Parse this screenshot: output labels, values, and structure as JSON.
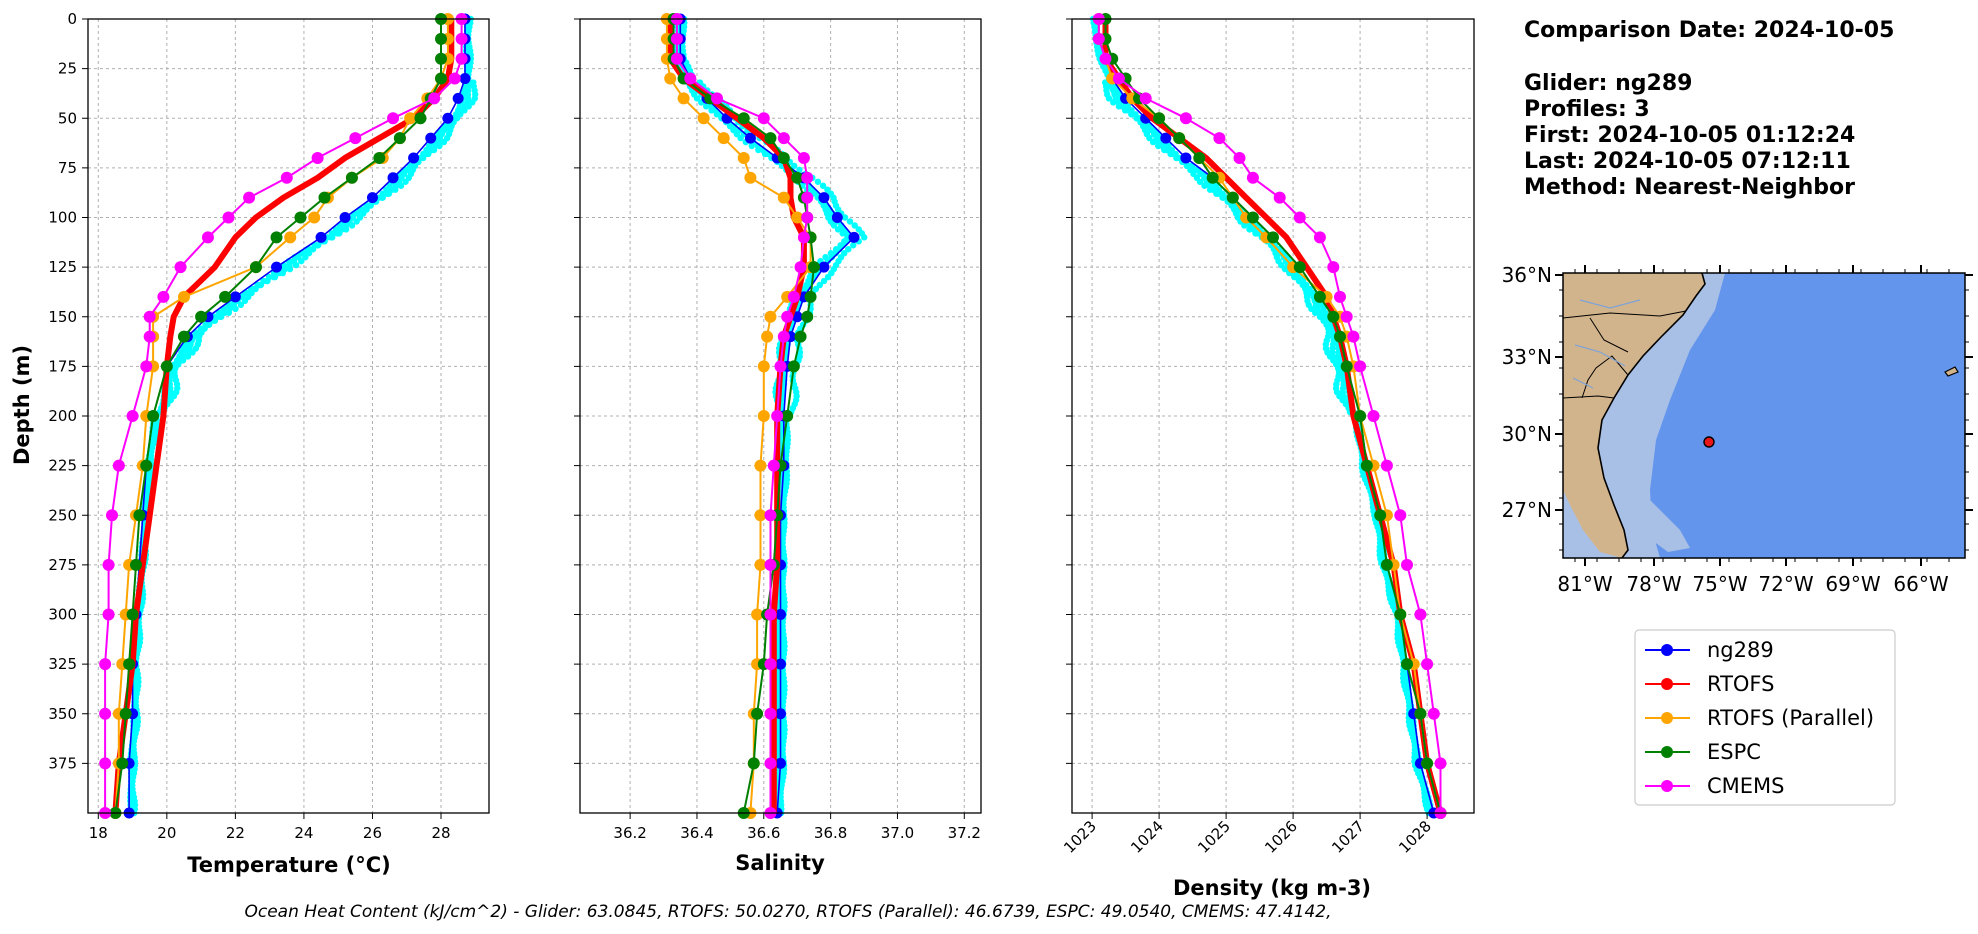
{
  "info": {
    "comparison": "Comparison Date: 2024-10-05",
    "glider": "Glider: ng289",
    "profiles": "Profiles: 3",
    "first": "First: 2024-10-05 01:12:24",
    "last": "Last: 2024-10-05 07:12:11",
    "method": "Method: Nearest-Neighbor"
  },
  "footer": "Ocean Heat Content (kJ/cm^2) - Glider: 63.0845,  RTOFS: 50.0270,  RTOFS (Parallel): 46.6739,  ESPC: 49.0540,  CMEMS: 47.4142,",
  "map": {
    "lat_ticks": [
      "36°N",
      "33°N",
      "30°N",
      "27°N"
    ],
    "lon_ticks": [
      "81°W",
      "78°W",
      "75°W",
      "72°W",
      "69°W",
      "66°W"
    ],
    "colors": {
      "land": "#d2b48c",
      "shelf": "#a9c0e6",
      "ocean": "#6495ed"
    }
  },
  "legend": [
    {
      "label": "ng289",
      "color": "#0000ff"
    },
    {
      "label": "RTOFS",
      "color": "#ff0000"
    },
    {
      "label": "RTOFS (Parallel)",
      "color": "#ffa500"
    },
    {
      "label": "ESPC",
      "color": "#008000"
    },
    {
      "label": "CMEMS",
      "color": "#ff00ff"
    }
  ],
  "chart_data": [
    {
      "type": "line",
      "xlabel": "Temperature (°C)",
      "ylabel": "Depth (m)",
      "xlim": [
        17.7,
        29.4
      ],
      "ylim": [
        400,
        0
      ],
      "xticks": [
        18,
        20,
        22,
        24,
        26,
        28
      ],
      "yticks": [
        0,
        25,
        50,
        75,
        100,
        125,
        150,
        175,
        200,
        225,
        250,
        275,
        300,
        325,
        350,
        375
      ],
      "grid": true,
      "depth": [
        0,
        10,
        20,
        30,
        40,
        50,
        60,
        70,
        80,
        90,
        100,
        110,
        125,
        140,
        150,
        160,
        175,
        200,
        225,
        250,
        275,
        300,
        325,
        350,
        375,
        400
      ],
      "series": [
        {
          "name": "ng289",
          "values": [
            28.7,
            28.7,
            28.7,
            28.7,
            28.5,
            28.2,
            27.7,
            27.2,
            26.6,
            26.0,
            25.2,
            24.5,
            23.2,
            22.0,
            21.2,
            20.6,
            20.0,
            19.6,
            19.4,
            19.3,
            19.2,
            19.1,
            19.0,
            19.0,
            18.9,
            18.9
          ]
        },
        {
          "name": "RTOFS",
          "values": [
            28.3,
            28.3,
            28.3,
            28.2,
            27.8,
            27.2,
            26.2,
            25.2,
            24.4,
            23.4,
            22.6,
            22.0,
            21.4,
            20.5,
            20.2,
            20.1,
            20.0,
            19.9,
            19.7,
            19.5,
            19.3,
            19.1,
            19.0,
            18.8,
            18.6,
            18.5
          ]
        },
        {
          "name": "RTOFS (Parallel)",
          "values": [
            28.2,
            28.2,
            28.2,
            28.0,
            27.6,
            27.1,
            26.8,
            26.3,
            25.4,
            24.7,
            24.3,
            23.6,
            22.6,
            20.5,
            19.6,
            19.6,
            19.6,
            19.4,
            19.3,
            19.1,
            18.9,
            18.8,
            18.7,
            18.6,
            18.6,
            18.5
          ]
        },
        {
          "name": "ESPC",
          "values": [
            28.0,
            28.0,
            28.0,
            28.0,
            27.7,
            27.4,
            26.8,
            26.2,
            25.4,
            24.6,
            23.9,
            23.2,
            22.6,
            21.7,
            21.0,
            20.5,
            20.0,
            19.6,
            19.4,
            19.2,
            19.1,
            19.0,
            18.9,
            18.8,
            18.7,
            18.5
          ]
        },
        {
          "name": "CMEMS",
          "values": [
            28.6,
            28.6,
            28.6,
            28.4,
            27.8,
            26.6,
            25.5,
            24.4,
            23.5,
            22.4,
            21.8,
            21.2,
            20.4,
            19.9,
            19.5,
            19.5,
            19.4,
            19.0,
            18.6,
            18.4,
            18.3,
            18.3,
            18.2,
            18.2,
            18.2,
            18.2
          ]
        }
      ]
    },
    {
      "type": "line",
      "xlabel": "Salinity",
      "ylabel": "",
      "xlim": [
        36.05,
        37.25
      ],
      "ylim": [
        400,
        0
      ],
      "xticks": [
        36.2,
        36.4,
        36.6,
        36.8,
        37.0,
        37.2
      ],
      "yticks": [
        0,
        25,
        50,
        75,
        100,
        125,
        150,
        175,
        200,
        225,
        250,
        275,
        300,
        325,
        350,
        375
      ],
      "grid": true,
      "depth": [
        0,
        10,
        20,
        30,
        40,
        50,
        60,
        70,
        80,
        90,
        100,
        110,
        125,
        140,
        150,
        160,
        175,
        200,
        225,
        250,
        275,
        300,
        325,
        350,
        375,
        400
      ],
      "series": [
        {
          "name": "ng289",
          "values": [
            36.35,
            36.35,
            36.35,
            36.38,
            36.43,
            36.49,
            36.56,
            36.64,
            36.72,
            36.78,
            36.82,
            36.87,
            36.78,
            36.72,
            36.7,
            36.68,
            36.67,
            36.66,
            36.66,
            36.65,
            36.65,
            36.65,
            36.65,
            36.65,
            36.65,
            36.64
          ]
        },
        {
          "name": "RTOFS",
          "values": [
            36.32,
            36.32,
            36.32,
            36.36,
            36.44,
            36.52,
            36.6,
            36.66,
            36.68,
            36.68,
            36.69,
            36.72,
            36.72,
            36.7,
            36.68,
            36.66,
            36.65,
            36.64,
            36.64,
            36.64,
            36.64,
            36.63,
            36.63,
            36.63,
            36.63,
            36.63
          ]
        },
        {
          "name": "RTOFS (Parallel)",
          "values": [
            36.31,
            36.31,
            36.31,
            36.32,
            36.36,
            36.42,
            36.48,
            36.54,
            36.56,
            36.66,
            36.7,
            36.74,
            36.74,
            36.67,
            36.62,
            36.61,
            36.6,
            36.6,
            36.59,
            36.59,
            36.59,
            36.58,
            36.58,
            36.57,
            36.57,
            36.56
          ]
        },
        {
          "name": "ESPC",
          "values": [
            36.33,
            36.33,
            36.33,
            36.36,
            36.44,
            36.54,
            36.62,
            36.66,
            36.7,
            36.72,
            36.73,
            36.74,
            36.75,
            36.74,
            36.73,
            36.71,
            36.69,
            36.67,
            36.65,
            36.64,
            36.63,
            36.61,
            36.6,
            36.58,
            36.57,
            36.54
          ]
        },
        {
          "name": "CMEMS",
          "values": [
            36.34,
            36.34,
            36.34,
            36.38,
            36.46,
            36.6,
            36.66,
            36.72,
            36.73,
            36.73,
            36.73,
            36.72,
            36.71,
            36.69,
            36.67,
            36.66,
            36.65,
            36.64,
            36.63,
            36.62,
            36.62,
            36.62,
            36.62,
            36.62,
            36.62,
            36.62
          ]
        }
      ]
    },
    {
      "type": "line",
      "xlabel": "Density (kg m-3)",
      "ylabel": "",
      "xlim": [
        1022.7,
        1028.7
      ],
      "ylim": [
        400,
        0
      ],
      "xticks": [
        1023,
        1024,
        1025,
        1026,
        1027,
        1028
      ],
      "yticks": [
        0,
        25,
        50,
        75,
        100,
        125,
        150,
        175,
        200,
        225,
        250,
        275,
        300,
        325,
        350,
        375
      ],
      "grid": true,
      "depth": [
        0,
        10,
        20,
        30,
        40,
        50,
        60,
        70,
        80,
        90,
        100,
        110,
        125,
        140,
        150,
        160,
        175,
        200,
        225,
        250,
        275,
        300,
        325,
        350,
        375,
        400
      ],
      "series": [
        {
          "name": "ng289",
          "values": [
            1023.1,
            1023.1,
            1023.2,
            1023.3,
            1023.5,
            1023.8,
            1024.1,
            1024.4,
            1024.8,
            1025.1,
            1025.4,
            1025.7,
            1026.1,
            1026.4,
            1026.6,
            1026.7,
            1026.8,
            1027.0,
            1027.1,
            1027.3,
            1027.4,
            1027.6,
            1027.7,
            1027.8,
            1027.9,
            1028.1
          ]
        },
        {
          "name": "RTOFS",
          "values": [
            1023.2,
            1023.2,
            1023.2,
            1023.4,
            1023.6,
            1023.9,
            1024.3,
            1024.7,
            1025.0,
            1025.3,
            1025.6,
            1025.9,
            1026.2,
            1026.5,
            1026.6,
            1026.7,
            1026.8,
            1026.9,
            1027.1,
            1027.3,
            1027.5,
            1027.6,
            1027.8,
            1027.9,
            1028.0,
            1028.2
          ]
        },
        {
          "name": "RTOFS (Parallel)",
          "values": [
            1023.1,
            1023.1,
            1023.2,
            1023.3,
            1023.6,
            1024.0,
            1024.3,
            1024.6,
            1024.9,
            1025.1,
            1025.3,
            1025.6,
            1026.0,
            1026.5,
            1026.7,
            1026.8,
            1026.9,
            1027.0,
            1027.2,
            1027.4,
            1027.5,
            1027.6,
            1027.8,
            1027.9,
            1028.0,
            1028.2
          ]
        },
        {
          "name": "ESPC",
          "values": [
            1023.2,
            1023.2,
            1023.3,
            1023.5,
            1023.7,
            1024.0,
            1024.3,
            1024.6,
            1024.8,
            1025.1,
            1025.4,
            1025.7,
            1026.1,
            1026.4,
            1026.6,
            1026.7,
            1026.8,
            1027.0,
            1027.1,
            1027.3,
            1027.4,
            1027.6,
            1027.7,
            1027.9,
            1028.0,
            1028.2
          ]
        },
        {
          "name": "CMEMS",
          "values": [
            1023.1,
            1023.1,
            1023.2,
            1023.4,
            1023.8,
            1024.4,
            1024.9,
            1025.2,
            1025.4,
            1025.8,
            1026.1,
            1026.4,
            1026.6,
            1026.7,
            1026.8,
            1026.9,
            1027.0,
            1027.2,
            1027.4,
            1027.6,
            1027.7,
            1027.9,
            1028.0,
            1028.1,
            1028.2,
            1028.2
          ]
        }
      ]
    }
  ]
}
